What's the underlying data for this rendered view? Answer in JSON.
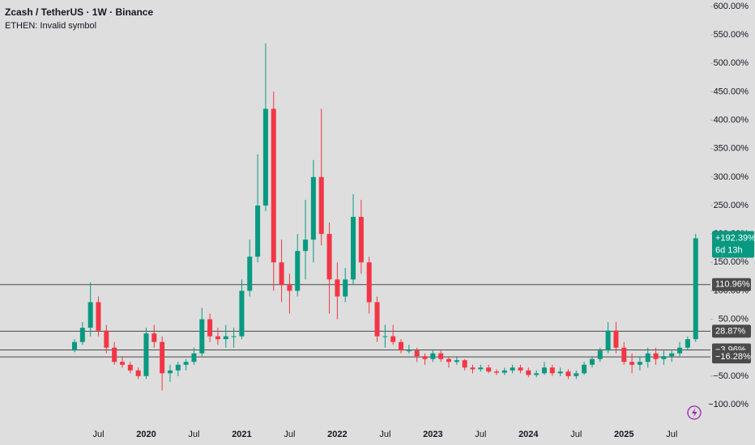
{
  "chart_data": {
    "type": "candlestick",
    "title": "Zcash / TetherUS · 1W · Binance",
    "subtitle": "ETHEN: Invalid symbol",
    "up_color": "#089981",
    "down_color": "#f23645",
    "categories": [
      null,
      null,
      null,
      "Jul",
      null,
      null,
      null,
      null,
      null,
      "2020",
      null,
      null,
      null,
      null,
      null,
      "Jul",
      null,
      null,
      null,
      null,
      null,
      "2021",
      null,
      null,
      null,
      null,
      null,
      "Jul",
      null,
      null,
      null,
      null,
      null,
      "2022",
      null,
      null,
      null,
      null,
      null,
      "Jul",
      null,
      null,
      null,
      null,
      null,
      "2023",
      null,
      null,
      null,
      null,
      null,
      "Jul",
      null,
      null,
      null,
      null,
      null,
      "2024",
      null,
      null,
      null,
      null,
      null,
      "Jul",
      null,
      null,
      null,
      null,
      null,
      "2025",
      null,
      null,
      null,
      null,
      null,
      "Jul",
      null,
      null,
      null
    ],
    "open": [
      -5,
      10,
      35,
      80,
      30,
      0,
      -25,
      -30,
      -40,
      -50,
      25,
      10,
      -45,
      -40,
      -30,
      -25,
      -10,
      50,
      20,
      15,
      20,
      20,
      100,
      160,
      250,
      420,
      150,
      110,
      100,
      170,
      190,
      300,
      200,
      120,
      90,
      120,
      230,
      150,
      80,
      20,
      20,
      10,
      -5,
      -5,
      -15,
      -20,
      -10,
      -20,
      -25,
      -22,
      -35,
      -38,
      -35,
      -42,
      -44,
      -40,
      -35,
      -40,
      -48,
      -45,
      -35,
      -45,
      -42,
      -50,
      -45,
      -30,
      -20,
      -5,
      30,
      0,
      -25,
      -30,
      -25,
      -10,
      -20,
      -15,
      -10,
      0,
      15
    ],
    "high": [
      15,
      45,
      115,
      90,
      40,
      10,
      -15,
      -25,
      -35,
      35,
      40,
      20,
      -30,
      -25,
      -20,
      0,
      70,
      60,
      35,
      40,
      35,
      120,
      190,
      340,
      535,
      450,
      190,
      130,
      200,
      260,
      330,
      420,
      220,
      150,
      140,
      270,
      260,
      160,
      90,
      40,
      40,
      15,
      5,
      0,
      -10,
      -5,
      -5,
      -15,
      -15,
      -20,
      -30,
      -30,
      -30,
      -38,
      -35,
      -30,
      -30,
      -35,
      -40,
      -25,
      -30,
      -35,
      -38,
      -40,
      -25,
      -15,
      0,
      45,
      45,
      10,
      -10,
      -15,
      0,
      0,
      -5,
      -5,
      10,
      20,
      200
    ],
    "low": [
      -8,
      5,
      20,
      20,
      -10,
      -30,
      -35,
      -45,
      -55,
      -55,
      0,
      -75,
      -60,
      -50,
      -40,
      -30,
      -15,
      10,
      5,
      0,
      0,
      15,
      90,
      150,
      240,
      100,
      80,
      60,
      90,
      120,
      150,
      180,
      60,
      50,
      80,
      110,
      130,
      60,
      10,
      0,
      5,
      -10,
      -10,
      -25,
      -30,
      -25,
      -25,
      -35,
      -30,
      -40,
      -45,
      -42,
      -45,
      -48,
      -48,
      -45,
      -45,
      -52,
      -52,
      -48,
      -50,
      -50,
      -55,
      -55,
      -48,
      -35,
      -25,
      -10,
      -10,
      -30,
      -45,
      -40,
      -35,
      -30,
      -30,
      -25,
      -15,
      -5,
      10
    ],
    "close": [
      10,
      35,
      80,
      30,
      0,
      -25,
      -30,
      -40,
      -50,
      25,
      10,
      -45,
      -40,
      -30,
      -25,
      -10,
      50,
      20,
      15,
      20,
      20,
      100,
      160,
      250,
      420,
      150,
      110,
      100,
      170,
      190,
      300,
      200,
      120,
      90,
      120,
      230,
      150,
      80,
      20,
      20,
      10,
      -5,
      -5,
      -15,
      -20,
      -10,
      -20,
      -25,
      -22,
      -35,
      -38,
      -35,
      -42,
      -44,
      -40,
      -35,
      -40,
      -48,
      -45,
      -35,
      -45,
      -42,
      -50,
      -45,
      -30,
      -20,
      -5,
      30,
      0,
      -25,
      -30,
      -25,
      -10,
      -20,
      -15,
      -10,
      0,
      15,
      192.39
    ],
    "last_label": "+192.39%",
    "countdown": "6d 13h",
    "ylim": [
      -100,
      600
    ],
    "yticks": [
      {
        "value": 600,
        "label": "600.00%"
      },
      {
        "value": 550,
        "label": "550.00%"
      },
      {
        "value": 500,
        "label": "500.00%"
      },
      {
        "value": 450,
        "label": "450.00%"
      },
      {
        "value": 400,
        "label": "400.00%"
      },
      {
        "value": 350,
        "label": "350.00%"
      },
      {
        "value": 300,
        "label": "300.00%"
      },
      {
        "value": 250,
        "label": "250.00%"
      },
      {
        "value": 200,
        "label": "200.00%"
      },
      {
        "value": 150,
        "label": "150.00%"
      },
      {
        "value": 100,
        "label": "100.00%"
      },
      {
        "value": 50,
        "label": "50.00%"
      },
      {
        "value": -50,
        "label": "−50.00%"
      },
      {
        "value": -100,
        "label": "−100.00%"
      }
    ],
    "levels": [
      {
        "value": 110.96,
        "label": "110.96%"
      },
      {
        "value": 28.87,
        "label": "28.87%"
      },
      {
        "value": -3.96,
        "label": "−3.96%"
      },
      {
        "value": -16.28,
        "label": "−16.28%"
      }
    ],
    "level_color": "#4a4a4a",
    "grid": false
  }
}
